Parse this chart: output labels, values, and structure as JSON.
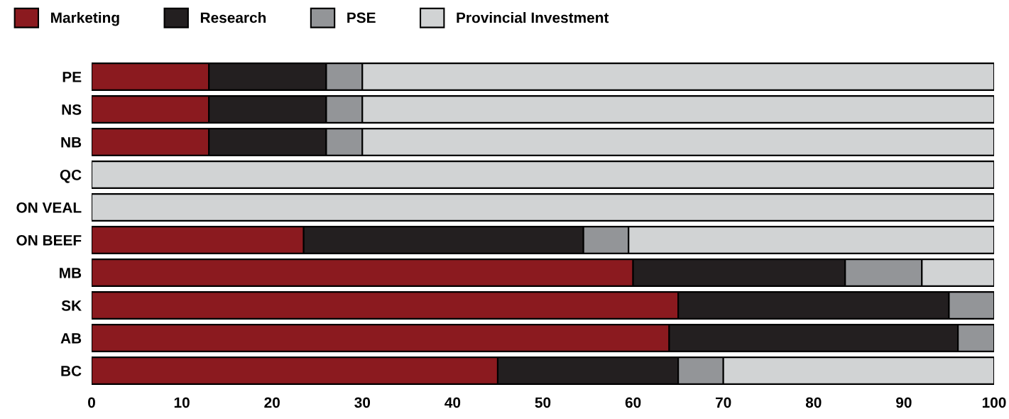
{
  "chart_data": {
    "type": "bar",
    "orientation": "horizontal",
    "stacked": true,
    "categories": [
      "PE",
      "NS",
      "NB",
      "QC",
      "ON VEAL",
      "ON BEEF",
      "MB",
      "SK",
      "AB",
      "BC"
    ],
    "series": [
      {
        "name": "Marketing",
        "color": "#8b1a1f",
        "values": [
          13,
          13,
          13,
          0,
          0,
          23.5,
          60,
          65,
          64,
          45
        ]
      },
      {
        "name": "Research",
        "color": "#231f20",
        "values": [
          13,
          13,
          13,
          0,
          0,
          31,
          23.5,
          30,
          32,
          20
        ]
      },
      {
        "name": "PSE",
        "color": "#939598",
        "values": [
          4,
          4,
          4,
          0,
          0,
          5,
          8.5,
          5,
          4,
          5
        ]
      },
      {
        "name": "Provincial Investment",
        "color": "#d1d3d4",
        "values": [
          70,
          70,
          70,
          100,
          100,
          40.5,
          8,
          0,
          0,
          30
        ]
      }
    ],
    "xlim": [
      0,
      100
    ],
    "xticks": [
      0,
      10,
      20,
      30,
      40,
      50,
      60,
      70,
      80,
      90,
      100
    ],
    "grid": false,
    "legend": "top left"
  }
}
